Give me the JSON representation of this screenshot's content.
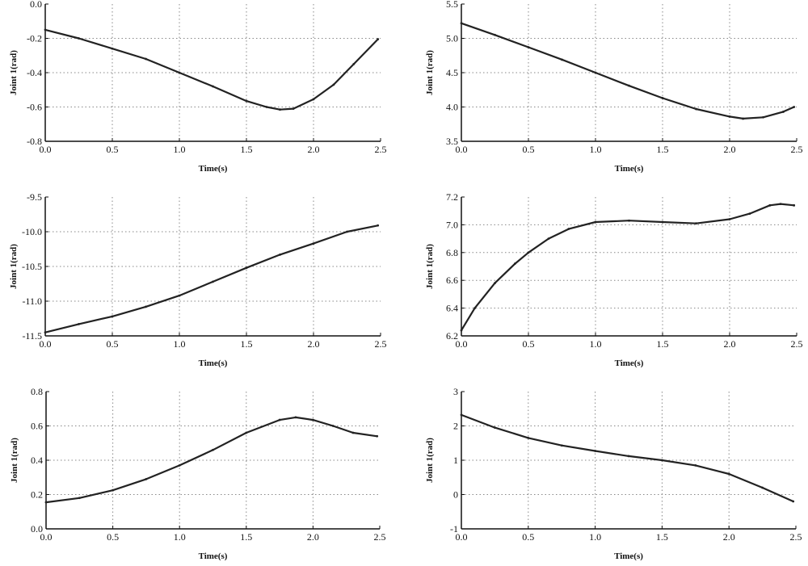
{
  "chart_data": [
    {
      "type": "line",
      "xlabel": "Time(s)",
      "ylabel": "Joint 1(rad)",
      "xlim": [
        0,
        2.5
      ],
      "ylim": [
        -0.8,
        0.0
      ],
      "xticks": [
        "0.0",
        "0.5",
        "1.0",
        "1.5",
        "2.0",
        "2.5"
      ],
      "yticks": [
        "0.0",
        "-0.2",
        "-0.4",
        "-0.6",
        "-0.8"
      ],
      "grid": true,
      "x": [
        0,
        0.25,
        0.5,
        0.75,
        1.0,
        1.25,
        1.5,
        1.65,
        1.75,
        1.85,
        2.0,
        2.15,
        2.3,
        2.48
      ],
      "y": [
        -0.15,
        -0.2,
        -0.26,
        -0.32,
        -0.4,
        -0.48,
        -0.565,
        -0.6,
        -0.615,
        -0.61,
        -0.555,
        -0.47,
        -0.35,
        -0.205
      ]
    },
    {
      "type": "line",
      "xlabel": "Time(s)",
      "ylabel": "Joint 1(rad)",
      "xlim": [
        0,
        2.5
      ],
      "ylim": [
        3.5,
        5.5
      ],
      "xticks": [
        "0.0",
        "0.5",
        "1.0",
        "1.5",
        "2.0",
        "2.5"
      ],
      "yticks": [
        "5.5",
        "5.0",
        "4.5",
        "4.0",
        "3.5"
      ],
      "grid": true,
      "x": [
        0,
        0.25,
        0.5,
        0.75,
        1.0,
        1.25,
        1.5,
        1.75,
        2.0,
        2.1,
        2.25,
        2.4,
        2.48
      ],
      "y": [
        5.22,
        5.05,
        4.87,
        4.69,
        4.5,
        4.31,
        4.13,
        3.97,
        3.86,
        3.83,
        3.85,
        3.93,
        4.0
      ]
    },
    {
      "type": "line",
      "xlabel": "Time(s)",
      "ylabel": "Joint 1(rad)",
      "xlim": [
        0,
        2.5
      ],
      "ylim": [
        -11.5,
        -9.5
      ],
      "xticks": [
        "0.0",
        "0.5",
        "1.0",
        "1.5",
        "2.0",
        "2.5"
      ],
      "yticks": [
        "-9.5",
        "-10.0",
        "-10.5",
        "-11.0",
        "-11.5"
      ],
      "grid": true,
      "x": [
        0,
        0.25,
        0.5,
        0.75,
        1.0,
        1.25,
        1.5,
        1.75,
        2.0,
        2.25,
        2.48
      ],
      "y": [
        -11.45,
        -11.33,
        -11.22,
        -11.08,
        -10.92,
        -10.72,
        -10.52,
        -10.33,
        -10.17,
        -10.0,
        -9.91
      ]
    },
    {
      "type": "line",
      "xlabel": "Time(s)",
      "ylabel": "Joint 1(rad)",
      "xlim": [
        0,
        2.5
      ],
      "ylim": [
        6.2,
        7.2
      ],
      "xticks": [
        "0.0",
        "0.5",
        "1.0",
        "1.5",
        "2.0",
        "2.5"
      ],
      "yticks": [
        "7.2",
        "7.0",
        "6.8",
        "6.6",
        "6.4",
        "6.2"
      ],
      "grid": true,
      "x": [
        0,
        0.1,
        0.25,
        0.4,
        0.5,
        0.65,
        0.8,
        1.0,
        1.25,
        1.5,
        1.75,
        2.0,
        2.15,
        2.3,
        2.38,
        2.48
      ],
      "y": [
        6.24,
        6.4,
        6.58,
        6.72,
        6.8,
        6.9,
        6.97,
        7.02,
        7.03,
        7.02,
        7.01,
        7.04,
        7.08,
        7.14,
        7.15,
        7.14
      ]
    },
    {
      "type": "line",
      "xlabel": "Time(s)",
      "ylabel": "Joint 1(rad)",
      "xlim": [
        0,
        2.5
      ],
      "ylim": [
        0.0,
        0.8
      ],
      "xticks": [
        "0.0",
        "0.5",
        "1.0",
        "1.5",
        "2.0",
        "2.5"
      ],
      "yticks": [
        "0.8",
        "0.6",
        "0.4",
        "0.2",
        "0.0"
      ],
      "grid": true,
      "x": [
        0,
        0.25,
        0.5,
        0.75,
        1.0,
        1.25,
        1.5,
        1.75,
        1.87,
        2.0,
        2.15,
        2.3,
        2.48
      ],
      "y": [
        0.155,
        0.18,
        0.225,
        0.29,
        0.37,
        0.46,
        0.56,
        0.635,
        0.65,
        0.635,
        0.6,
        0.56,
        0.54
      ]
    },
    {
      "type": "line",
      "xlabel": "Time(s)",
      "ylabel": "Joint 1(rad)",
      "xlim": [
        0,
        2.5
      ],
      "ylim": [
        -1,
        3
      ],
      "xticks": [
        "0.0",
        "0.5",
        "1.0",
        "1.5",
        "2.0",
        "2.5"
      ],
      "yticks": [
        "3",
        "2",
        "1",
        "0",
        "-1"
      ],
      "grid": true,
      "x": [
        0,
        0.25,
        0.5,
        0.75,
        1.0,
        1.25,
        1.5,
        1.75,
        2.0,
        2.25,
        2.48
      ],
      "y": [
        2.32,
        1.95,
        1.65,
        1.43,
        1.27,
        1.12,
        1.0,
        0.85,
        0.6,
        0.2,
        -0.2
      ]
    }
  ],
  "colors": {
    "line": "#222222",
    "grid": "#888888",
    "axis": "#111111"
  }
}
